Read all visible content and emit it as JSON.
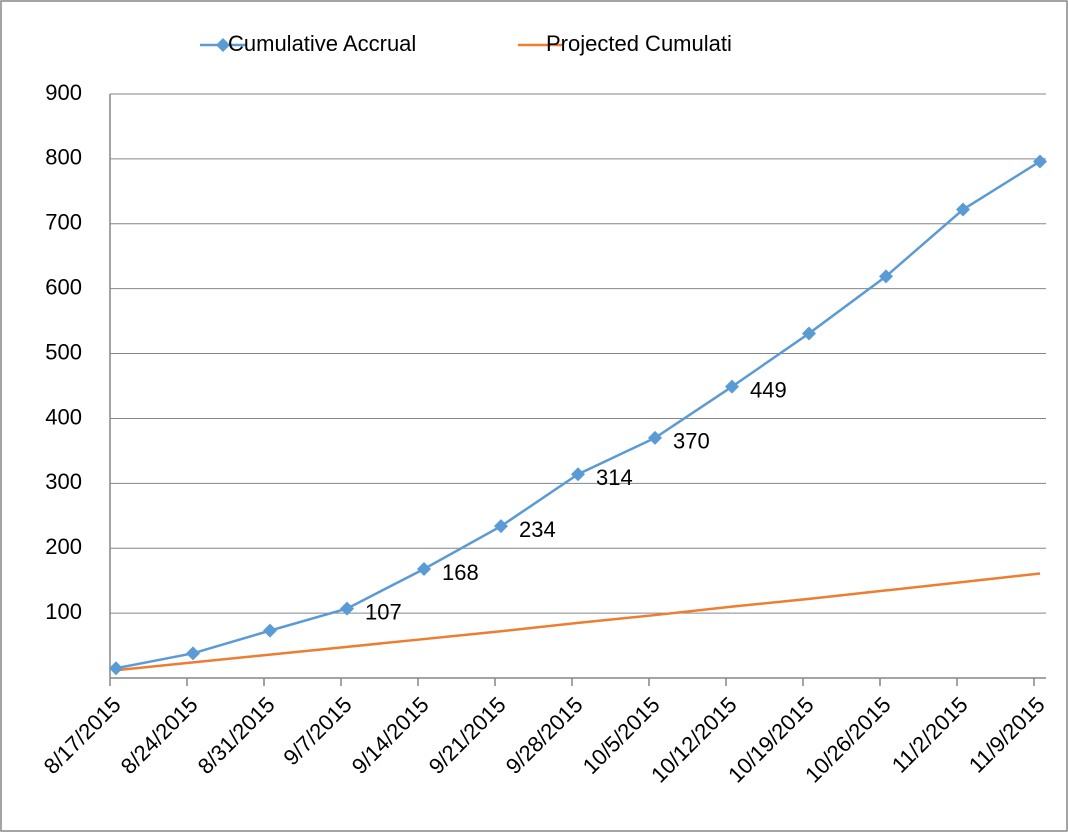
{
  "chart_data": {
    "type": "line",
    "categories": [
      "8/17/2015",
      "8/24/2015",
      "8/31/2015",
      "9/7/2015",
      "9/14/2015",
      "9/21/2015",
      "9/28/2015",
      "10/5/2015",
      "10/12/2015",
      "10/19/2015",
      "10/26/2015",
      "11/2/2015",
      "11/9/2015"
    ],
    "series": [
      {
        "name": "Cumulative Accrual",
        "color": "#5b9bd5",
        "marker": "diamond",
        "values": [
          15,
          38,
          73,
          107,
          168,
          234,
          314,
          370,
          449,
          531,
          619,
          722,
          796
        ],
        "value_labels": [
          null,
          null,
          null,
          "107",
          "168",
          "234",
          "314",
          "370",
          "449",
          null,
          null,
          null,
          null
        ]
      },
      {
        "name": "Projected Cumulati",
        "color": "#ed7d31",
        "values": [
          12,
          24,
          36,
          48,
          60,
          72,
          85,
          97,
          110,
          122,
          135,
          148,
          161
        ]
      }
    ],
    "ylim": [
      0,
      900
    ],
    "yticks": [
      100,
      200,
      300,
      400,
      500,
      600,
      700,
      800,
      900
    ],
    "grid": true,
    "legend": "top"
  }
}
